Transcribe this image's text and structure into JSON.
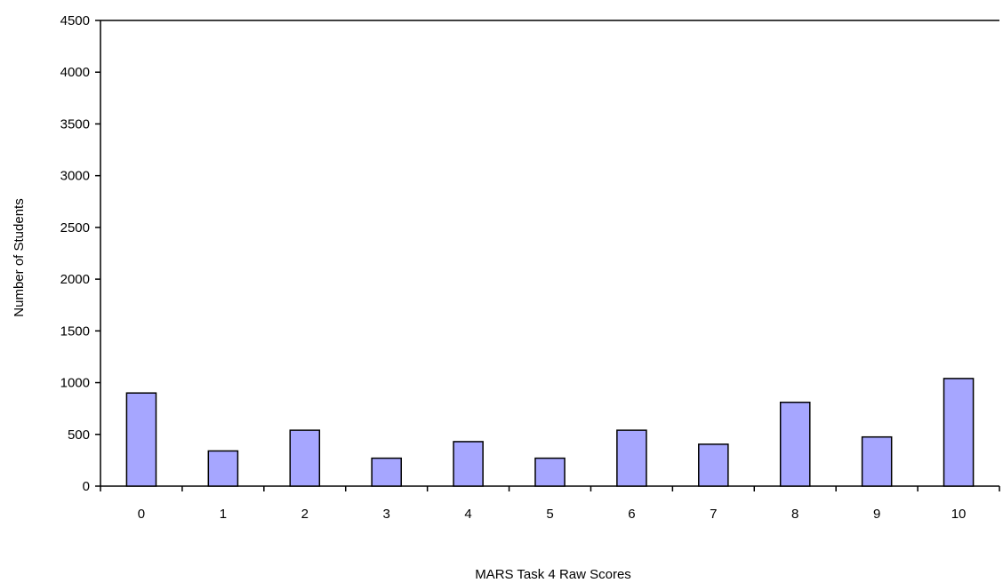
{
  "chart_data": {
    "type": "bar",
    "title": "",
    "xlabel": "MARS Task 4 Raw Scores",
    "ylabel": "Number of Students",
    "categories": [
      "0",
      "1",
      "2",
      "3",
      "4",
      "5",
      "6",
      "7",
      "8",
      "9",
      "10"
    ],
    "values": [
      900,
      340,
      540,
      270,
      430,
      270,
      540,
      405,
      810,
      475,
      1040
    ],
    "ylim": [
      0,
      4500
    ],
    "yticks": [
      "0",
      "500",
      "1000",
      "1500",
      "2000",
      "2500",
      "3000",
      "3500",
      "4000",
      "4500"
    ],
    "grid": false,
    "legend": "none",
    "bar_color": "#a6a6ff",
    "bar_edge_color": "#000000"
  }
}
